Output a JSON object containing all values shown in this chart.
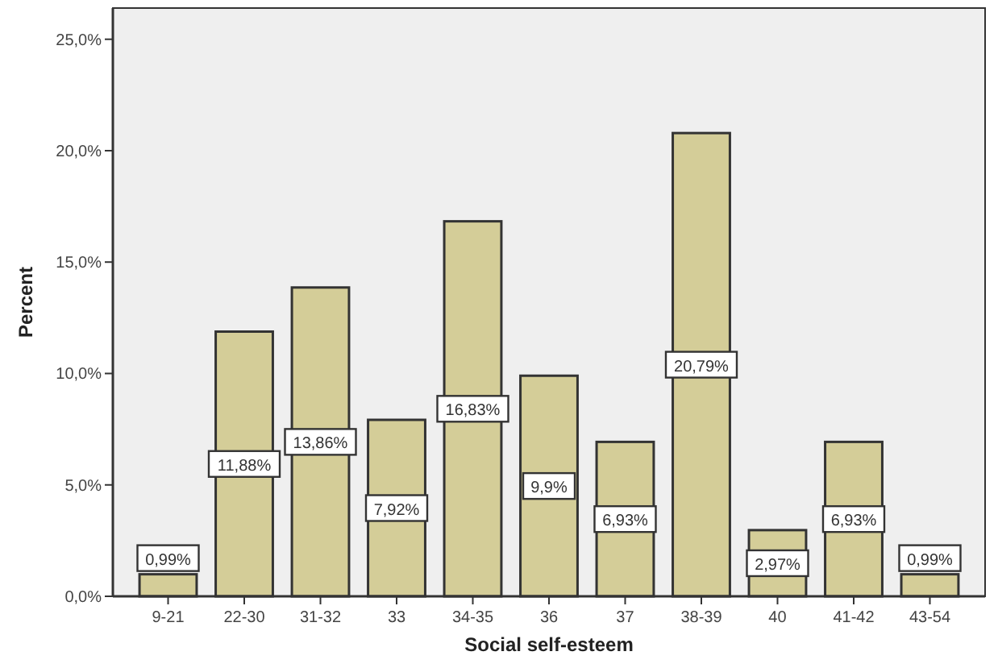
{
  "chart_data": {
    "type": "bar",
    "xlabel": "Social self-esteem",
    "ylabel": "Percent",
    "categories": [
      "9-21",
      "22-30",
      "31-32",
      "33",
      "34-35",
      "36",
      "37",
      "38-39",
      "40",
      "41-42",
      "43-54"
    ],
    "values": [
      0.99,
      11.88,
      13.86,
      7.92,
      16.83,
      9.9,
      6.93,
      20.79,
      2.97,
      6.93,
      0.99
    ],
    "value_labels": [
      "0,99%",
      "11,88%",
      "13,86%",
      "7,92%",
      "16,83%",
      "9,9%",
      "6,93%",
      "20,79%",
      "2,97%",
      "6,93%",
      "0,99%"
    ],
    "color": "#d4cd98",
    "ylim": [
      0,
      26.4
    ],
    "yticks": [
      {
        "value": 0,
        "label": "0,0%"
      },
      {
        "value": 5,
        "label": "5,0%"
      },
      {
        "value": 10,
        "label": "10,0%"
      },
      {
        "value": 15,
        "label": "15,0%"
      },
      {
        "value": 20,
        "label": "20,0%"
      },
      {
        "value": 25,
        "label": "25,0%"
      }
    ],
    "grid": false
  }
}
